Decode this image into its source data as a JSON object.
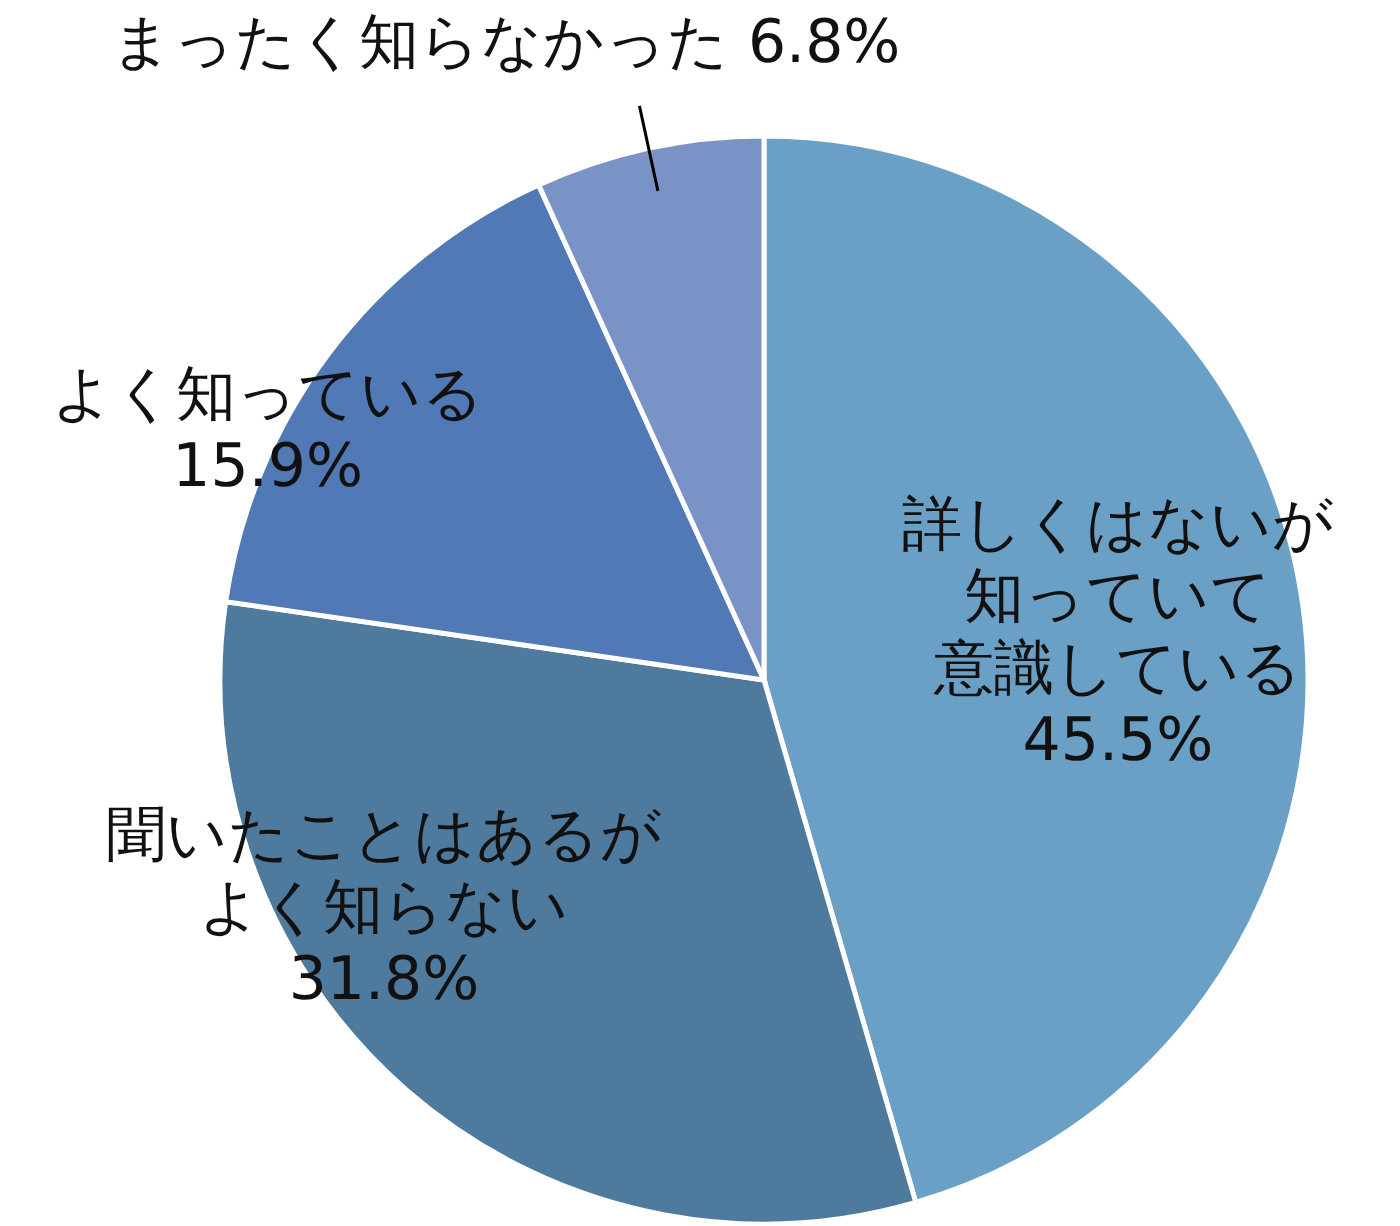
{
  "chart_data": {
    "type": "pie",
    "categories": [
      "詳しくはないが知っていて意識している",
      "聞いたことはあるがよく知らない",
      "よく知っている",
      "まったく知らなかった"
    ],
    "values": [
      45.5,
      31.8,
      15.9,
      6.8
    ],
    "colors": [
      "#6aa0c6",
      "#4e7a9e",
      "#5079b5",
      "#7a93c6"
    ],
    "value_labels": [
      "45.5%",
      "31.8%",
      "15.9%",
      "6.8%"
    ]
  }
}
